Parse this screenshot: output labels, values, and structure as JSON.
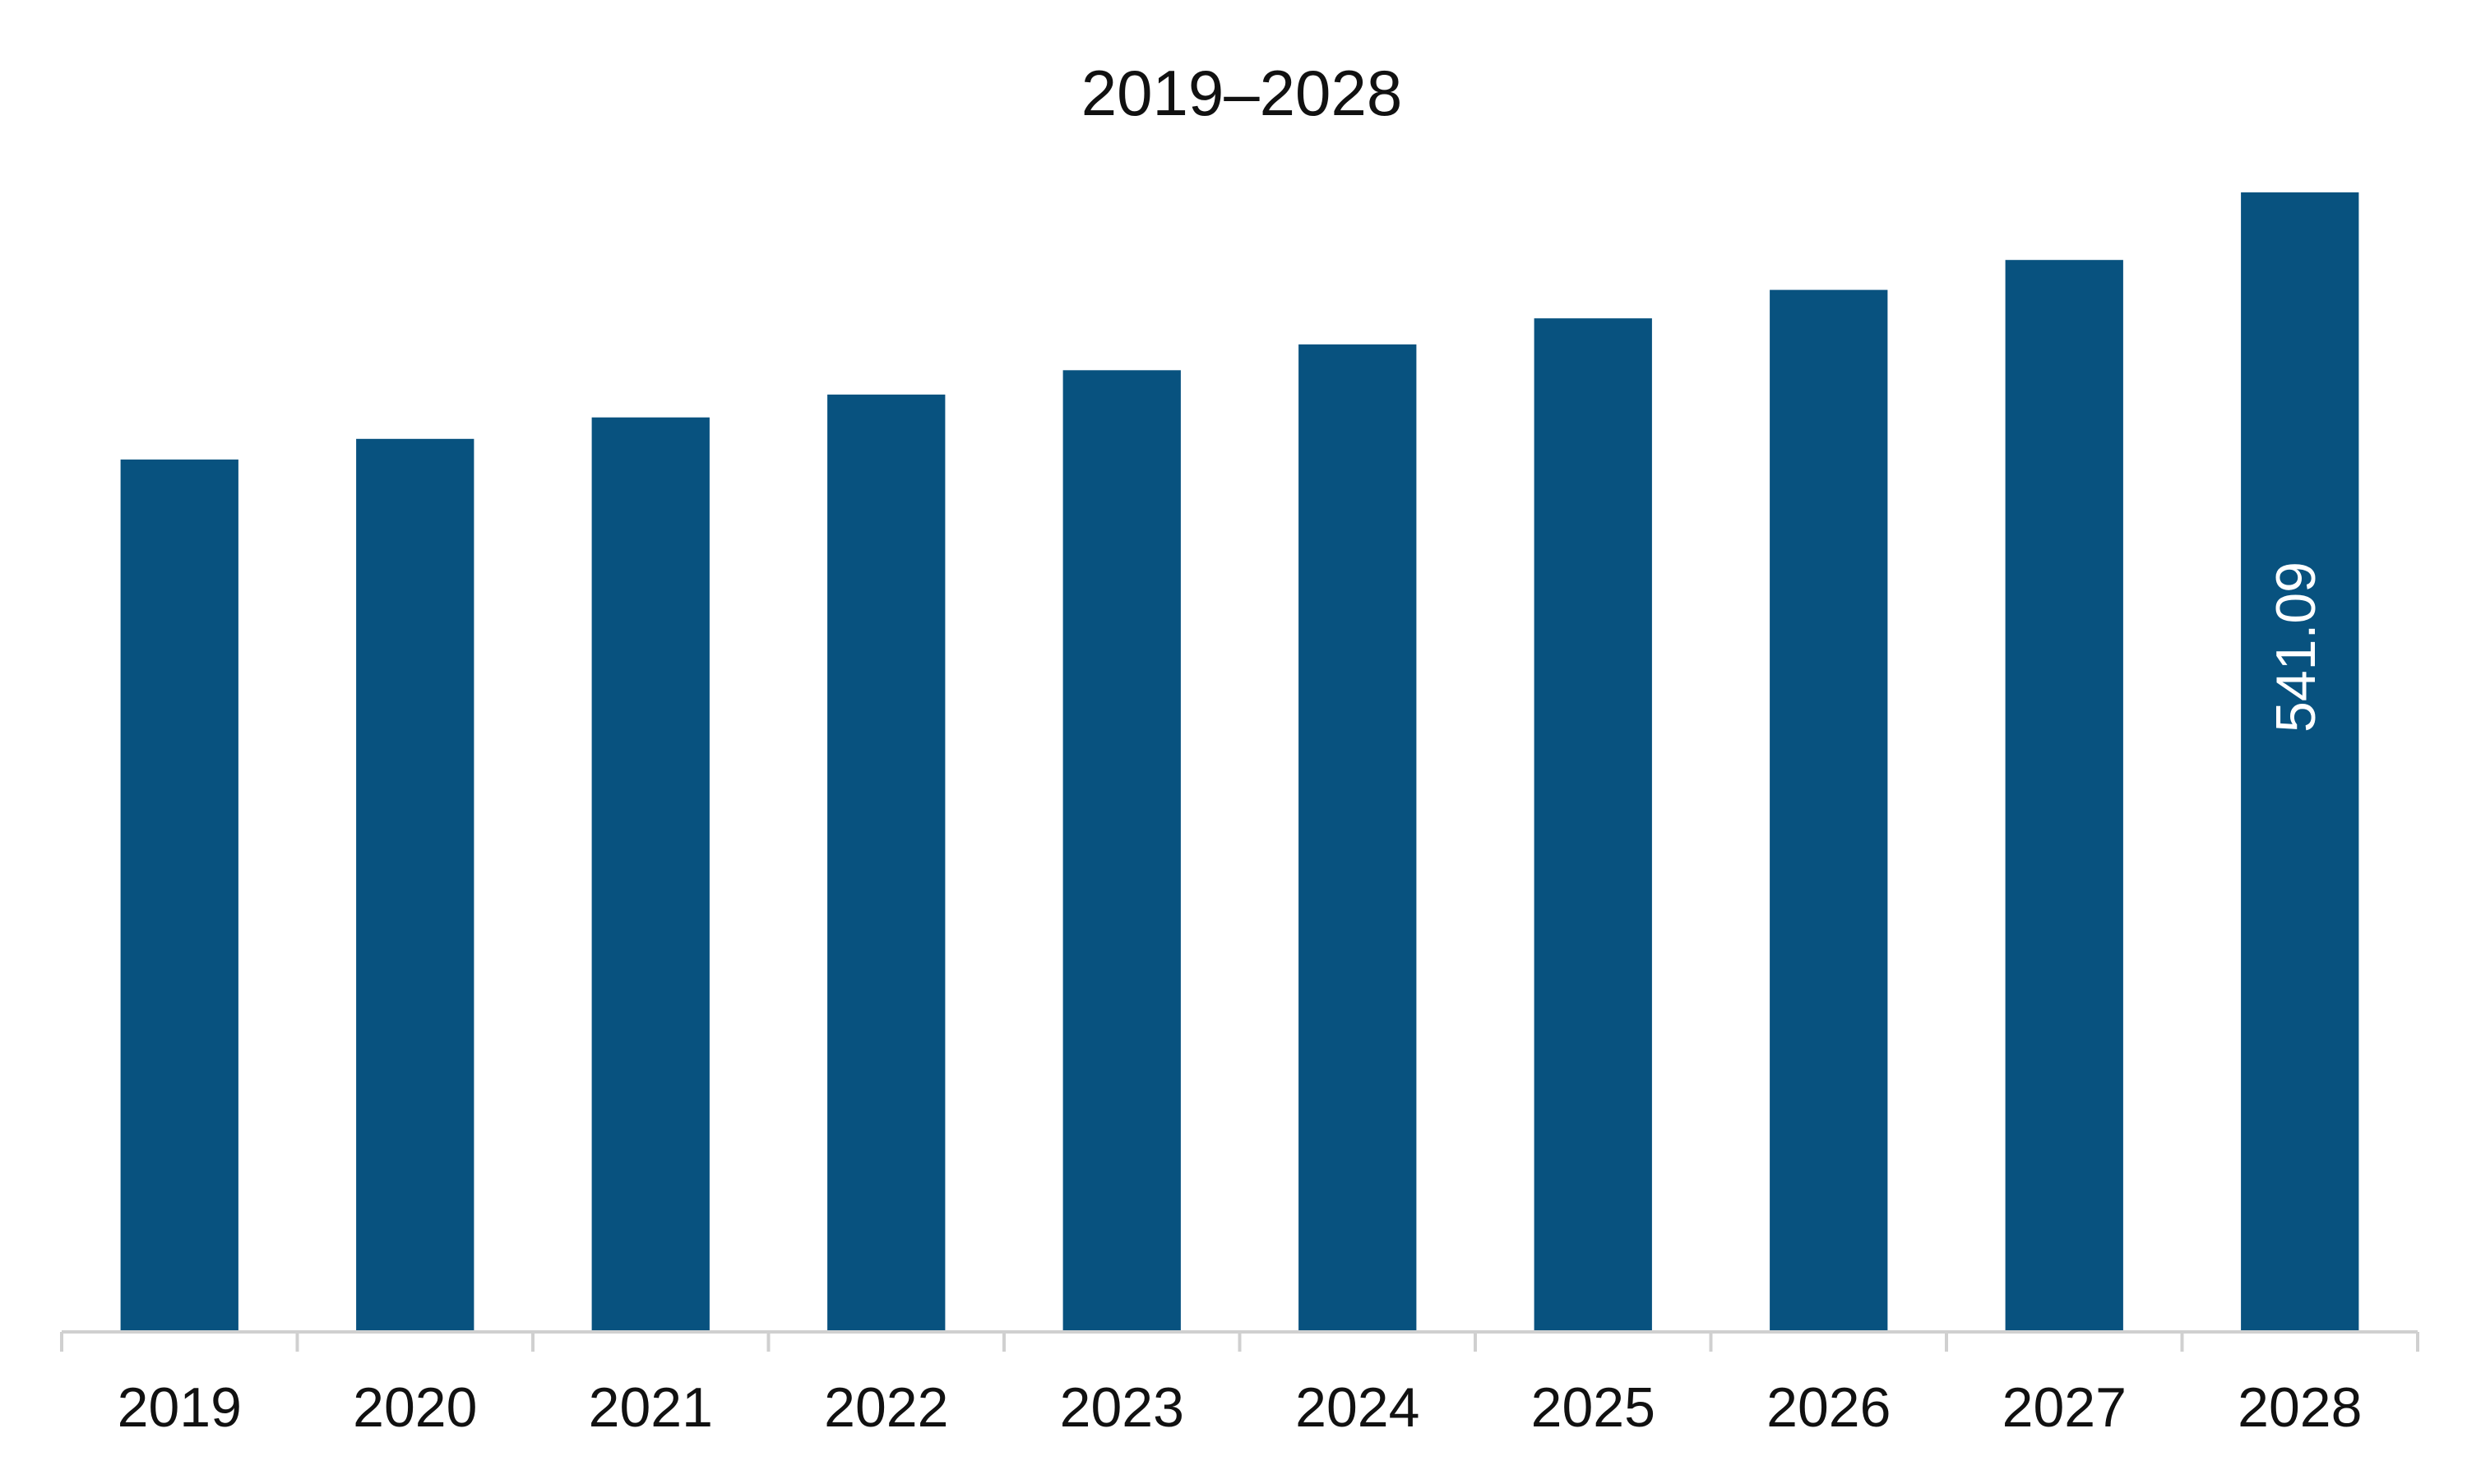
{
  "chart_data": {
    "type": "bar",
    "title": "2019–2028",
    "xlabel": "",
    "ylabel": "",
    "categories": [
      "2019",
      "2020",
      "2021",
      "2022",
      "2023",
      "2024",
      "2025",
      "2026",
      "2027",
      "2028"
    ],
    "values": [
      401.7,
      411.2,
      421.1,
      431.6,
      442.8,
      454.7,
      466.7,
      479.8,
      493.6,
      541.09
    ],
    "data_labels": {
      "2028": "541.09"
    },
    "ylim": [
      0,
      530
    ],
    "grid": false,
    "legend": "none",
    "bar_color": "#08527f",
    "label_color": "#ffffff"
  }
}
